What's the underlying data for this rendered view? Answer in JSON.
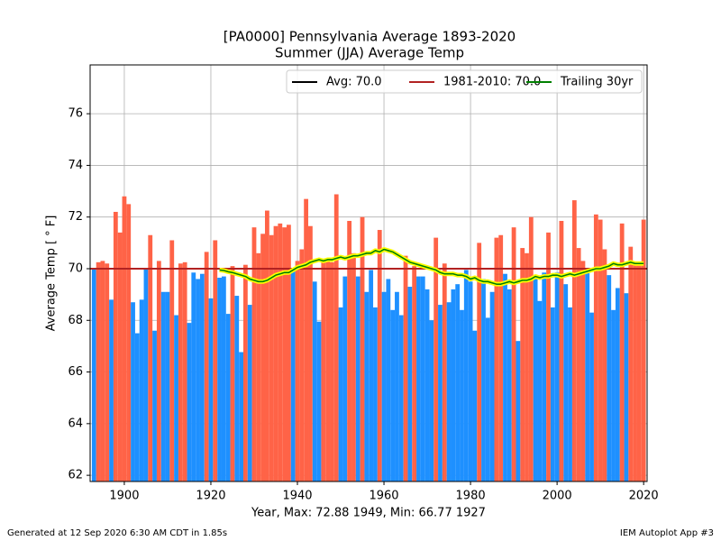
{
  "chart_data": {
    "type": "bar",
    "title": "[PA0000] Pennsylvania Average 1893-2020",
    "subtitle": "Summer (JJA) Average Temp",
    "ylabel": "Average Temp [ ° F]",
    "xlabel": "Year, Max: 72.88 1949, Min: 66.77 1927",
    "footer_left": "Generated at 12 Sep 2020 6:30 AM CDT in 1.85s",
    "footer_right": "IEM Autoplot App #3",
    "xlim": [
      1892.1,
      2020.8
    ],
    "ylim": [
      61.76,
      77.89
    ],
    "xticks": [
      1900,
      1920,
      1940,
      1960,
      1980,
      2000,
      2020
    ],
    "yticks": [
      62,
      64,
      66,
      68,
      70,
      72,
      74,
      76
    ],
    "grid": true,
    "legend": "upper right",
    "above_color": "#ff6347",
    "below_color": "#1e90ff",
    "x": [
      1893,
      1894,
      1895,
      1896,
      1897,
      1898,
      1899,
      1900,
      1901,
      1902,
      1903,
      1904,
      1905,
      1906,
      1907,
      1908,
      1909,
      1910,
      1911,
      1912,
      1913,
      1914,
      1915,
      1916,
      1917,
      1918,
      1919,
      1920,
      1921,
      1922,
      1923,
      1924,
      1925,
      1926,
      1927,
      1928,
      1929,
      1930,
      1931,
      1932,
      1933,
      1934,
      1935,
      1936,
      1937,
      1938,
      1939,
      1940,
      1941,
      1942,
      1943,
      1944,
      1945,
      1946,
      1947,
      1948,
      1949,
      1950,
      1951,
      1952,
      1953,
      1954,
      1955,
      1956,
      1957,
      1958,
      1959,
      1960,
      1961,
      1962,
      1963,
      1964,
      1965,
      1966,
      1967,
      1968,
      1969,
      1970,
      1971,
      1972,
      1973,
      1974,
      1975,
      1976,
      1977,
      1978,
      1979,
      1980,
      1981,
      1982,
      1983,
      1984,
      1985,
      1986,
      1987,
      1988,
      1989,
      1990,
      1991,
      1992,
      1993,
      1994,
      1995,
      1996,
      1997,
      1998,
      1999,
      2000,
      2001,
      2002,
      2003,
      2004,
      2005,
      2006,
      2007,
      2008,
      2009,
      2010,
      2011,
      2012,
      2013,
      2014,
      2015,
      2016,
      2017,
      2018,
      2019,
      2020
    ],
    "values": [
      69.98,
      70.25,
      70.3,
      70.2,
      68.8,
      72.2,
      71.4,
      72.8,
      72.5,
      68.7,
      67.5,
      68.8,
      69.98,
      71.3,
      67.6,
      70.3,
      69.1,
      69.1,
      71.1,
      68.2,
      70.2,
      70.25,
      67.9,
      69.85,
      69.6,
      69.8,
      70.65,
      68.85,
      71.1,
      69.65,
      69.7,
      68.25,
      70.1,
      68.95,
      66.77,
      70.15,
      68.6,
      71.6,
      70.6,
      71.35,
      72.25,
      71.3,
      71.65,
      71.75,
      71.6,
      71.7,
      69.9,
      70.3,
      70.75,
      72.7,
      71.65,
      69.5,
      67.95,
      70.3,
      70.3,
      70.25,
      72.88,
      68.5,
      69.7,
      71.85,
      70.6,
      69.7,
      72.0,
      69.1,
      69.95,
      68.5,
      71.5,
      69.1,
      69.6,
      68.4,
      69.1,
      68.2,
      70.5,
      69.3,
      70.1,
      69.7,
      69.7,
      69.2,
      68.0,
      71.2,
      68.6,
      70.2,
      68.7,
      69.2,
      69.4,
      68.4,
      69.95,
      69.5,
      67.6,
      71.0,
      69.6,
      68.1,
      69.1,
      71.2,
      71.3,
      69.8,
      69.2,
      71.6,
      67.2,
      70.8,
      70.6,
      72.0,
      69.6,
      68.75,
      69.85,
      71.4,
      68.5,
      69.85,
      71.85,
      69.4,
      68.5,
      72.65,
      70.8,
      70.3,
      69.85,
      68.3,
      72.1,
      71.9,
      70.75,
      69.75,
      68.4,
      69.25,
      71.75,
      69.05,
      70.85,
      70.15,
      70.2,
      71.9
    ],
    "hlines": [
      {
        "name": "Avg: 70.0",
        "value": 70.0,
        "color": "#000000"
      },
      {
        "name": "1981-2010: 70.0",
        "value": 70.0,
        "color": "#b22222"
      }
    ],
    "series": [
      {
        "name": "Trailing 30yr",
        "color": "#008000",
        "halo": "#ffff00",
        "values": [
          null,
          null,
          null,
          null,
          null,
          null,
          null,
          null,
          null,
          null,
          null,
          null,
          null,
          null,
          null,
          null,
          null,
          null,
          null,
          null,
          null,
          null,
          null,
          null,
          null,
          null,
          null,
          null,
          null,
          69.95,
          69.93,
          69.88,
          69.85,
          69.8,
          69.75,
          69.7,
          69.6,
          69.55,
          69.5,
          69.5,
          69.55,
          69.65,
          69.75,
          69.8,
          69.85,
          69.85,
          69.95,
          70.05,
          70.1,
          70.15,
          70.25,
          70.3,
          70.35,
          70.3,
          70.35,
          70.35,
          70.4,
          70.45,
          70.4,
          70.45,
          70.5,
          70.5,
          70.55,
          70.6,
          70.6,
          70.7,
          70.65,
          70.75,
          70.7,
          70.65,
          70.55,
          70.45,
          70.35,
          70.25,
          70.2,
          70.15,
          70.1,
          70.05,
          70.0,
          69.95,
          69.85,
          69.8,
          69.8,
          69.8,
          69.75,
          69.75,
          69.7,
          69.6,
          69.65,
          69.55,
          69.5,
          69.5,
          69.45,
          69.4,
          69.4,
          69.45,
          69.5,
          69.45,
          69.5,
          69.55,
          69.55,
          69.6,
          69.7,
          69.65,
          69.7,
          69.7,
          69.75,
          69.75,
          69.7,
          69.75,
          69.8,
          69.75,
          69.8,
          69.85,
          69.9,
          69.95,
          70.0,
          70.0,
          70.05,
          70.1,
          70.2,
          70.15,
          70.15,
          70.2,
          70.25,
          70.2,
          70.2,
          70.2
        ]
      }
    ]
  }
}
